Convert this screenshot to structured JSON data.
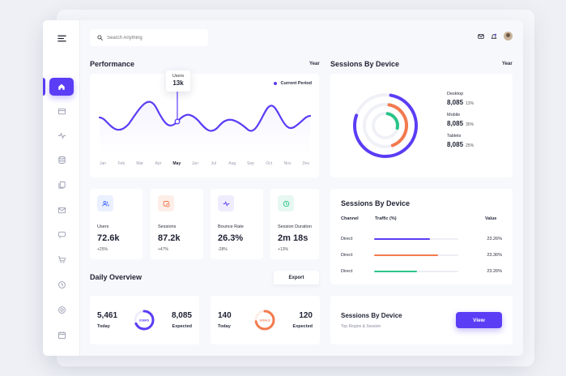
{
  "search": {
    "placeholder": "Search Anything"
  },
  "performance": {
    "title": "Performance",
    "period": "Year",
    "legend": "Current Period",
    "tooltip_label": "Users",
    "tooltip_value": "13k",
    "months": [
      "Jan",
      "Feb",
      "Mar",
      "Apr",
      "May",
      "Jun",
      "Jul",
      "Aug",
      "Sep",
      "Oct",
      "Nov",
      "Dec"
    ],
    "active_month": "May"
  },
  "sessions_by_device": {
    "title": "Sessions By Device",
    "period": "Year",
    "devices": [
      {
        "label": "Desktop",
        "value": "8,085",
        "pct": "13%",
        "color": "#5b3df5"
      },
      {
        "label": "Mobile",
        "value": "8,085",
        "pct": "30%",
        "color": "#f27a4e"
      },
      {
        "label": "Tablets",
        "value": "8,085",
        "pct": "25%",
        "color": "#2bc48a"
      }
    ]
  },
  "stats": [
    {
      "label": "Users",
      "value": "72.6k",
      "change": "+25%",
      "icon": "users-icon",
      "bg": "#eaf0fe",
      "color": "#4a6cf7"
    },
    {
      "label": "Sessions",
      "value": "87.2k",
      "change": "+47%",
      "icon": "sessions-icon",
      "bg": "#fdeee8",
      "color": "#f27a4e"
    },
    {
      "label": "Bounce Rate",
      "value": "26.3%",
      "change": "-28%",
      "icon": "activity-icon",
      "bg": "#efedfd",
      "color": "#5b3df5"
    },
    {
      "label": "Session Duration",
      "value": "2m 18s",
      "change": "+13%",
      "icon": "clock-icon",
      "bg": "#e7f7f1",
      "color": "#2bc48a"
    }
  ],
  "traffic_table": {
    "title": "Sessions By Device",
    "headers": {
      "channel": "Channel",
      "traffic": "Traffic (%)",
      "value": "Value"
    },
    "rows": [
      {
        "channel": "Direct",
        "traffic": 0.66,
        "value": "23.26%",
        "color": "#5b3df5"
      },
      {
        "channel": "Direct",
        "traffic": 0.76,
        "value": "23.36%",
        "color": "#f27a4e"
      },
      {
        "channel": "Direct",
        "traffic": 0.51,
        "value": "23.26%",
        "color": "#2bc48a"
      }
    ]
  },
  "daily_overview": {
    "title": "Daily Overview",
    "export_label": "Export",
    "cards": [
      {
        "today": "5,461",
        "today_label": "Today",
        "expected": "8,085",
        "expected_label": "Expected",
        "gauge_label": "USERS",
        "color": "#5b3df5",
        "progress": 0.68
      },
      {
        "today": "140",
        "today_label": "Today",
        "expected": "120",
        "expected_label": "Expected",
        "gauge_label": "GOALS",
        "color": "#f27a4e",
        "progress": 0.72
      }
    ]
  },
  "cta": {
    "title": "Sessions By Device",
    "subtitle": "Top Region & Session",
    "button_label": "View"
  }
}
